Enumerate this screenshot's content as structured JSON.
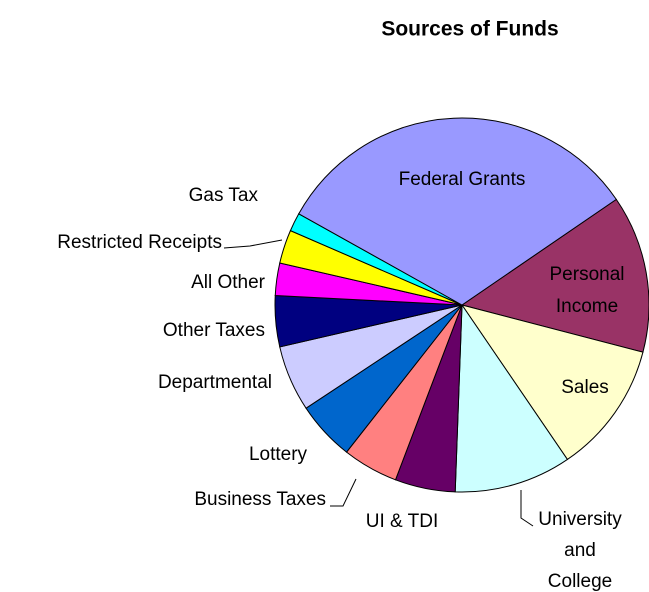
{
  "chart_data": {
    "type": "pie",
    "title": "Sources of Funds",
    "categories": [
      "Personal Income",
      "Sales",
      "University and College",
      "UI & TDI",
      "Business Taxes",
      "Lottery",
      "Departmental",
      "Other Taxes",
      "All Other",
      "Restricted Receipts",
      "Gas Tax",
      "Federal Grants"
    ],
    "values": [
      13.6,
      11.4,
      10.1,
      5.2,
      4.8,
      5.1,
      5.7,
      4.4,
      2.8,
      2.9,
      1.6,
      32.3
    ],
    "colors": [
      "#993366",
      "#ffffcc",
      "#ccffff",
      "#660066",
      "#ff8080",
      "#0066cc",
      "#ccccff",
      "#000080",
      "#ff00ff",
      "#ffff00",
      "#00ffff",
      "#9999ff"
    ]
  }
}
